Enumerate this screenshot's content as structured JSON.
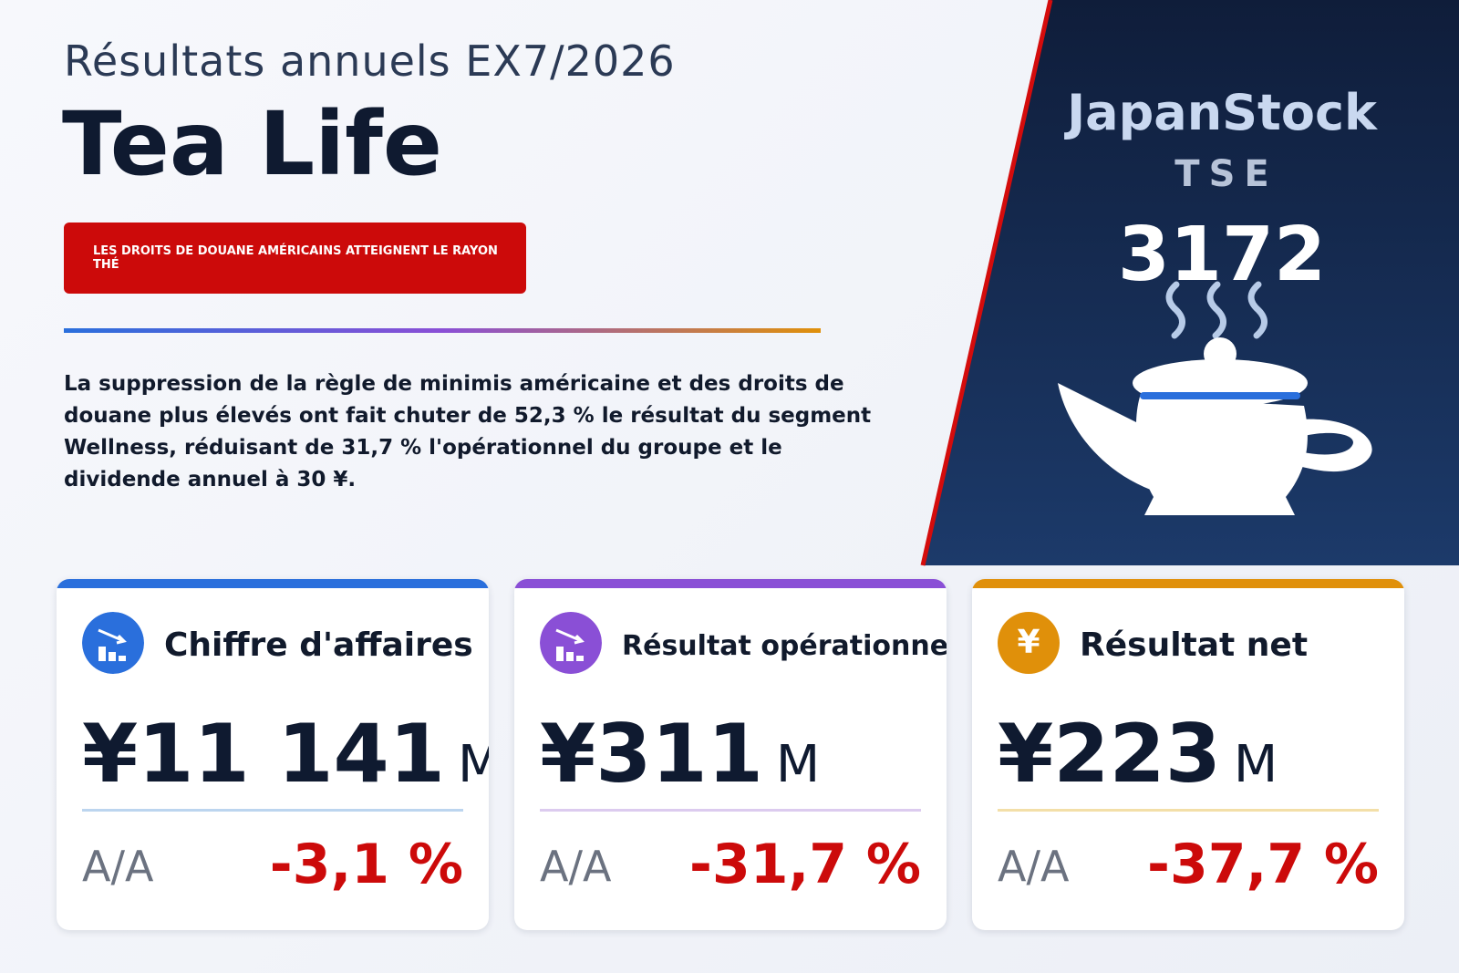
{
  "header": {
    "subtitle": "Résultats annuels EX7/2026",
    "title": "Tea Life",
    "badge": "LES DROITS DE DOUANE AMÉRICAINS ATTEIGNENT LE RAYON THÉ"
  },
  "summary": "La suppression de la règle de minimis américaine et des droits de douane plus élevés ont fait chuter de 52,3 % le résultat du segment Wellness, réduisant de 31,7 % l'opérationnel du groupe et le dividende annuel à 30 ¥.",
  "brand": {
    "name": "JapanStock",
    "exchange": "TSE",
    "code": "3172"
  },
  "cards": [
    {
      "title": "Chiffre d'affaires",
      "value": "¥11 141",
      "unit": "M",
      "yoy_label": "A/A",
      "yoy": "-3,1 %"
    },
    {
      "title": "Résultat opérationnel",
      "value": "¥311",
      "unit": "M",
      "yoy_label": "A/A",
      "yoy": "-31,7 %"
    },
    {
      "title": "Résultat net",
      "icon": "¥",
      "value": "¥223",
      "unit": "M",
      "yoy_label": "A/A",
      "yoy": "-37,7 %"
    }
  ]
}
